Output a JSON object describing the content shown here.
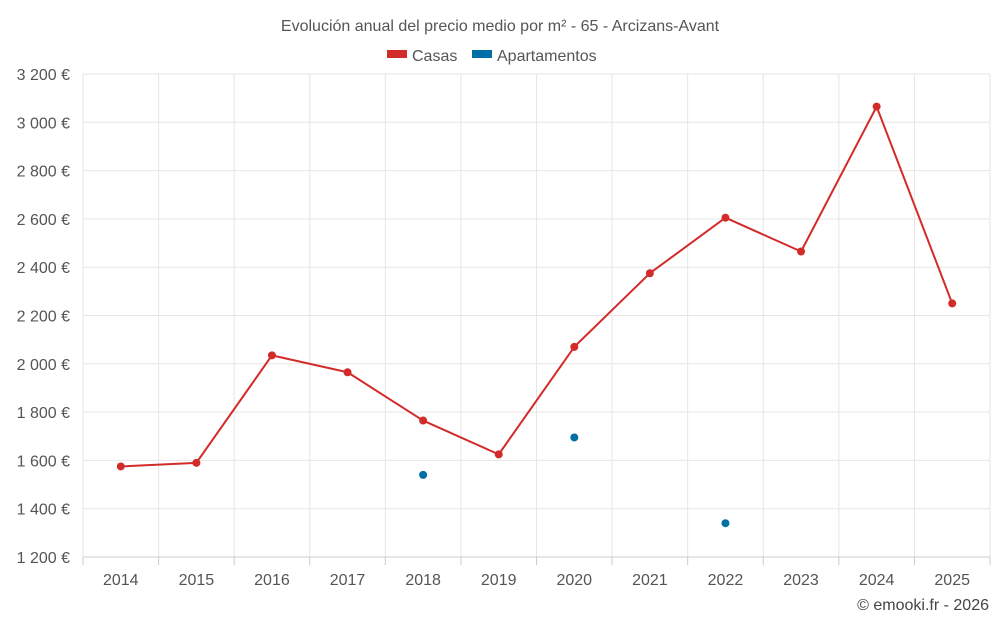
{
  "chart_data": {
    "type": "line",
    "title": "Evolución anual del precio medio por m² - 65 - Arcizans-Avant",
    "categories": [
      "2014",
      "2015",
      "2016",
      "2017",
      "2018",
      "2019",
      "2020",
      "2021",
      "2022",
      "2023",
      "2024",
      "2025"
    ],
    "series": [
      {
        "name": "Casas",
        "color": "#d32a2a",
        "style": "line-with-markers",
        "values": [
          1575,
          1590,
          2035,
          1965,
          1765,
          1625,
          2070,
          2375,
          2605,
          2465,
          3065,
          2250
        ]
      },
      {
        "name": "Apartamentos",
        "color": "#006fa6",
        "style": "markers-only",
        "values": [
          null,
          null,
          null,
          null,
          1540,
          null,
          1695,
          null,
          1340,
          null,
          null,
          null
        ]
      }
    ],
    "ylim": [
      1200,
      3200
    ],
    "y_ticks": [
      1200,
      1400,
      1600,
      1800,
      2000,
      2200,
      2400,
      2600,
      2800,
      3000,
      3200
    ],
    "y_tick_labels": [
      "1 200 €",
      "1 400 €",
      "1 600 €",
      "1 800 €",
      "2 000 €",
      "2 200 €",
      "2 400 €",
      "2 600 €",
      "2 800 €",
      "3 000 €",
      "3 200 €"
    ],
    "xlabel": "",
    "ylabel": "",
    "grid": true,
    "legend_position": "top-center"
  },
  "credit": "© emooki.fr - 2026"
}
